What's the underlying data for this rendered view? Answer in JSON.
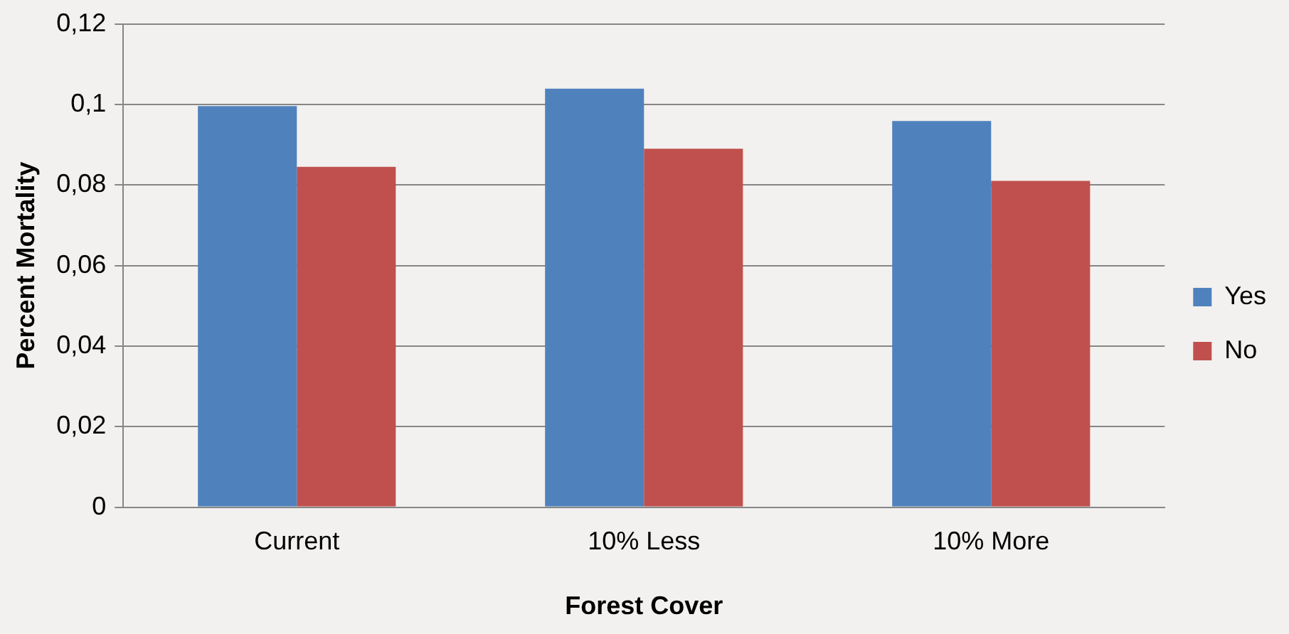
{
  "chart_data": {
    "type": "bar",
    "xlabel": "Forest Cover",
    "ylabel": "Percent Mortality",
    "categories": [
      "Current",
      "10% Less",
      "10% More"
    ],
    "series": [
      {
        "name": "Yes",
        "color": "#4f81bd",
        "values": [
          0.0996,
          0.1039,
          0.0959
        ]
      },
      {
        "name": "No",
        "color": "#c0504d",
        "values": [
          0.0845,
          0.089,
          0.081
        ]
      }
    ],
    "ylim": [
      0,
      0.12
    ],
    "yticks": [
      {
        "value": 0,
        "label": "0"
      },
      {
        "value": 0.02,
        "label": "0,02"
      },
      {
        "value": 0.04,
        "label": "0,04"
      },
      {
        "value": 0.06,
        "label": "0,06"
      },
      {
        "value": 0.08,
        "label": "0,08"
      },
      {
        "value": 0.1,
        "label": "0,1"
      },
      {
        "value": 0.12,
        "label": "0,12"
      }
    ],
    "grid": "y",
    "legend": "right"
  }
}
